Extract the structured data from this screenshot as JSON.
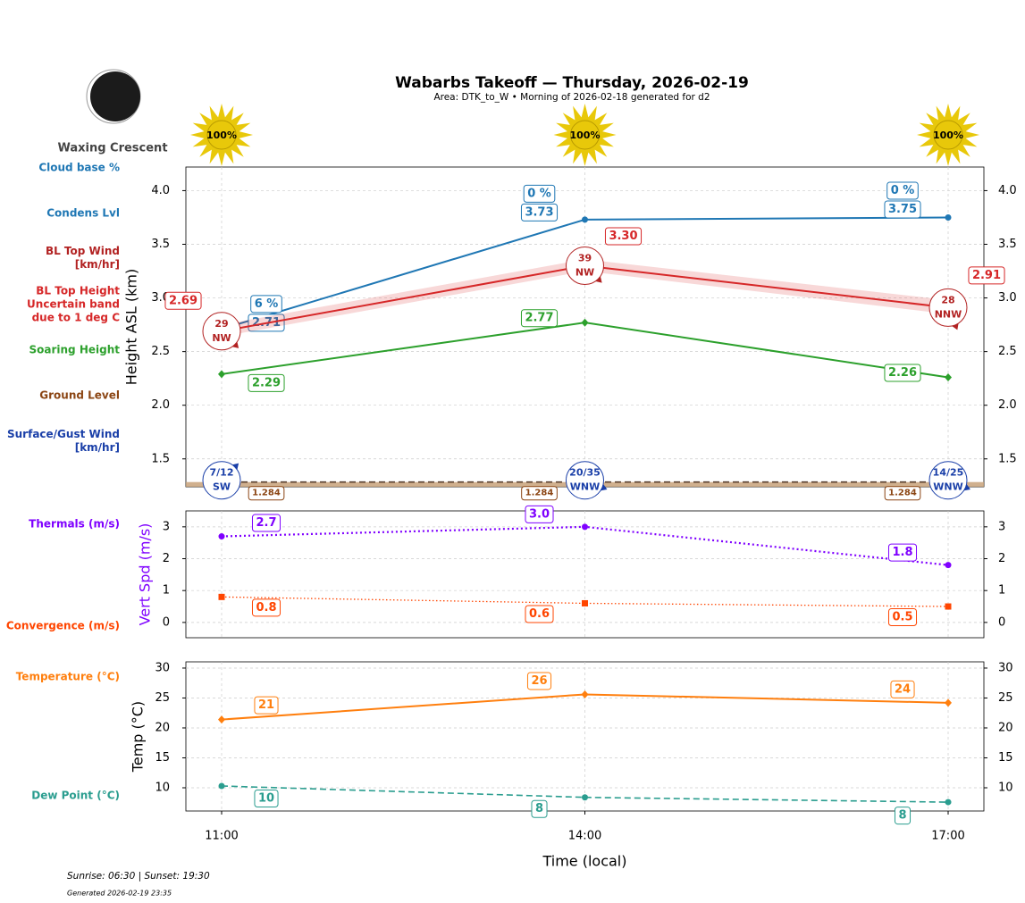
{
  "title": "Wabarbs Takeoff — Thursday, 2026-02-19",
  "subtitle": "Area: DTK_to_W • Morning of 2026-02-18 generated for d2",
  "moon_phase": "Waxing Crescent",
  "footer": {
    "sun_times": "Sunrise: 06:30 | Sunset: 19:30",
    "generated": "Generated 2026-02-19 23:35"
  },
  "chart_data": [
    {
      "type": "line",
      "ylabel": "Height ASL (km)",
      "ylim": [
        1.24,
        4.22
      ],
      "yticks": [
        1.5,
        {
          "value": 2,
          "label": "2.0"
        },
        2.5,
        {
          "value": 3,
          "label": "3.0"
        },
        3.5,
        {
          "value": 4,
          "label": "4.0"
        }
      ],
      "grid": true,
      "sun": {
        "values": [
          100,
          100,
          100
        ],
        "value_labels": [
          "100%",
          "100%",
          "100%"
        ]
      },
      "cloud_base": {
        "name": "Cloud base %",
        "color": "#1f77b4",
        "values": [
          6,
          0,
          0
        ],
        "value_labels": [
          "6 %",
          "0 %",
          "0 %"
        ]
      },
      "bl_top_wind": {
        "name": "BL Top Wind\n[km/hr]",
        "color": "#b22222",
        "speeds": [
          29,
          39,
          28
        ],
        "directions": [
          "NW",
          "NW",
          "NNW"
        ]
      },
      "surface_wind": {
        "name": "Surface/Gust Wind\n[km/hr]",
        "color": "#1a3fa8",
        "speeds": [
          7,
          20,
          14
        ],
        "gusts": [
          12,
          35,
          25
        ],
        "value_labels": [
          "7/12",
          "20/35",
          "14/25"
        ],
        "directions": [
          "SW",
          "WNW",
          "WNW"
        ]
      },
      "series": [
        {
          "name": "Condens Lvl",
          "color": "#1f77b4",
          "linestyle": "solid",
          "marker": "circle",
          "values": [
            2.71,
            3.73,
            3.75
          ]
        },
        {
          "name": "BL Top Height\nUncertain band\ndue to 1 deg C",
          "color": "#d62728",
          "linestyle": "solid",
          "marker": "none",
          "values": [
            2.69,
            3.3,
            2.91
          ],
          "value_labels": [
            "2.69",
            "3.30",
            "2.91"
          ],
          "band_low": [
            2.64,
            3.25,
            2.85
          ],
          "band_high": [
            2.75,
            3.36,
            2.98
          ]
        },
        {
          "name": "Soaring Height",
          "color": "#2ca02c",
          "linestyle": "solid",
          "marker": "diamond",
          "values": [
            2.29,
            2.77,
            2.26
          ]
        },
        {
          "name": "Ground Level",
          "color": "#8b4513",
          "linestyle": "dashed",
          "marker": "none",
          "values": [
            1.284,
            1.284,
            1.284
          ]
        }
      ]
    },
    {
      "type": "line",
      "ylabel": "Vert Spd (m/s)",
      "ylabel_color": "#7f00ff",
      "ylim": [
        -0.48,
        3.5
      ],
      "yticks": [
        0,
        1,
        2,
        3
      ],
      "grid": true,
      "series": [
        {
          "name": "Thermals (m/s)",
          "color": "#7f00ff",
          "linestyle": "dotted",
          "marker": "circle",
          "values": [
            2.7,
            3.0,
            1.8
          ],
          "value_labels": [
            "2.7",
            "3.0",
            "1.8"
          ]
        },
        {
          "name": "Convergence (m/s)",
          "color": "#ff4500",
          "linestyle": "dotted-thin",
          "marker": "square",
          "values": [
            0.8,
            0.6,
            0.5
          ]
        }
      ]
    },
    {
      "type": "line",
      "ylabel": "Temp (°C)",
      "xlabel": "Time (local)",
      "categories": [
        "11:00",
        "14:00",
        "17:00"
      ],
      "ylim": [
        6.12,
        31.04
      ],
      "yticks": [
        10,
        15,
        20,
        25,
        30
      ],
      "grid": true,
      "series": [
        {
          "name": "Temperature (°C)",
          "color": "#ff7f0e",
          "linestyle": "solid",
          "marker": "diamond",
          "values": [
            21.4,
            25.6,
            24.2
          ],
          "value_labels": [
            "21",
            "26",
            "24"
          ]
        },
        {
          "name": "Dew Point (°C)",
          "color": "#2a9d8f",
          "linestyle": "dashed",
          "marker": "circle",
          "values": [
            10.3,
            8.4,
            7.6
          ],
          "value_labels": [
            "10",
            "8",
            "8"
          ]
        }
      ]
    }
  ]
}
